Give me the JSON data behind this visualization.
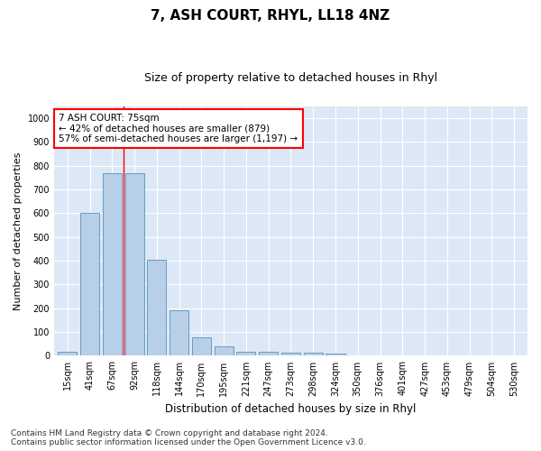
{
  "title": "7, ASH COURT, RHYL, LL18 4NZ",
  "subtitle": "Size of property relative to detached houses in Rhyl",
  "xlabel": "Distribution of detached houses by size in Rhyl",
  "ylabel": "Number of detached properties",
  "bar_labels": [
    "15sqm",
    "41sqm",
    "67sqm",
    "92sqm",
    "118sqm",
    "144sqm",
    "170sqm",
    "195sqm",
    "221sqm",
    "247sqm",
    "273sqm",
    "298sqm",
    "324sqm",
    "350sqm",
    "376sqm",
    "401sqm",
    "427sqm",
    "453sqm",
    "479sqm",
    "504sqm",
    "530sqm"
  ],
  "bar_values": [
    15,
    600,
    770,
    770,
    403,
    190,
    78,
    40,
    18,
    16,
    12,
    13,
    8,
    0,
    0,
    0,
    0,
    0,
    0,
    0,
    0
  ],
  "bar_color": "#b8cfe8",
  "bar_edge_color": "#5a90c0",
  "vline_x": 2.5,
  "vline_color": "red",
  "annotation_text": "7 ASH COURT: 75sqm\n← 42% of detached houses are smaller (879)\n57% of semi-detached houses are larger (1,197) →",
  "annotation_box_color": "white",
  "annotation_box_edge": "red",
  "ylim": [
    0,
    1050
  ],
  "yticks": [
    0,
    100,
    200,
    300,
    400,
    500,
    600,
    700,
    800,
    900,
    1000
  ],
  "plot_bg_color": "#dce8f5",
  "footer_line1": "Contains HM Land Registry data © Crown copyright and database right 2024.",
  "footer_line2": "Contains public sector information licensed under the Open Government Licence v3.0.",
  "title_fontsize": 11,
  "subtitle_fontsize": 9,
  "xlabel_fontsize": 8.5,
  "ylabel_fontsize": 8,
  "tick_fontsize": 7,
  "footer_fontsize": 6.5
}
